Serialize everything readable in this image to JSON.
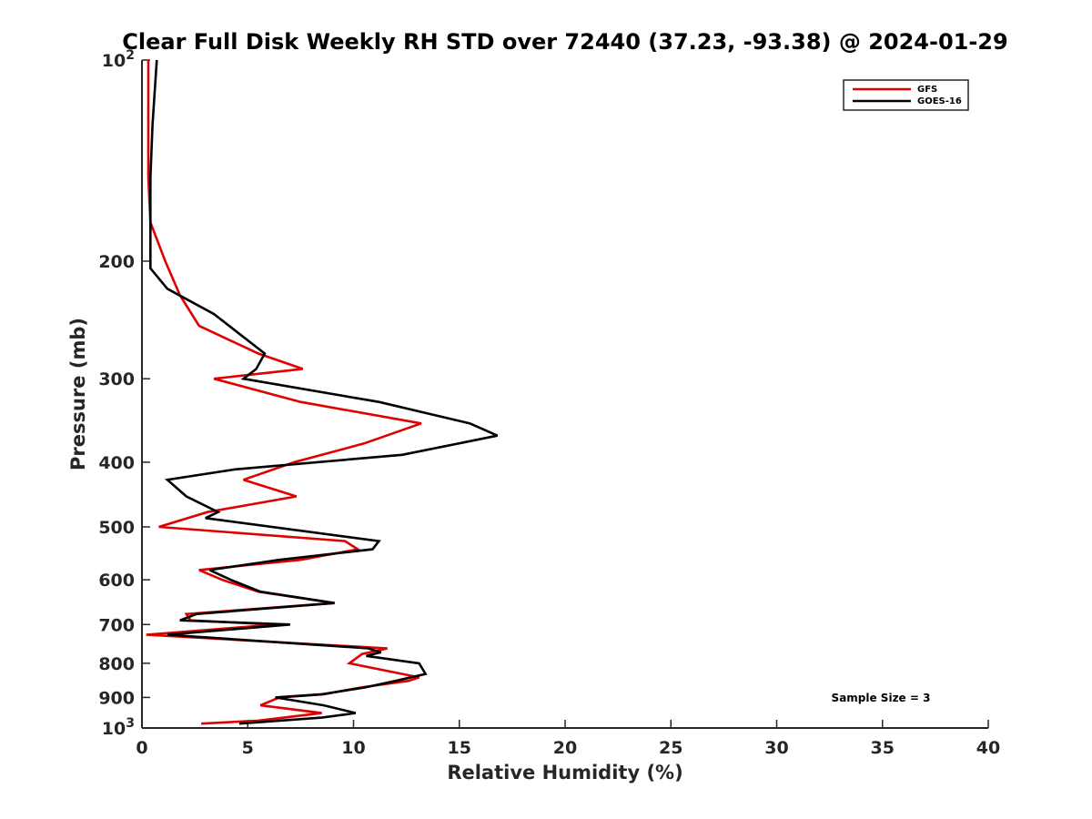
{
  "chart_data": {
    "type": "line",
    "title": "Clear Full Disk Weekly RH STD over 72440 (37.23, -93.38) @ 2024-01-29",
    "xlabel": "Relative Humidity (%)",
    "ylabel": "Pressure (mb)",
    "xlim": [
      0,
      40
    ],
    "ylim": [
      100,
      1000
    ],
    "yscale": "log",
    "y_reversed": true,
    "grid": false,
    "legend_position": "top-right",
    "x_ticks": [
      0,
      5,
      10,
      15,
      20,
      25,
      30,
      35,
      40
    ],
    "y_ticks": [
      {
        "value": 100,
        "base": "10",
        "exp": "2"
      },
      {
        "value": 200,
        "label": "200"
      },
      {
        "value": 300,
        "label": "300"
      },
      {
        "value": 400,
        "label": "400"
      },
      {
        "value": 500,
        "label": "500"
      },
      {
        "value": 600,
        "label": "600"
      },
      {
        "value": 700,
        "label": "700"
      },
      {
        "value": 800,
        "label": "800"
      },
      {
        "value": 900,
        "label": "900"
      },
      {
        "value": 1000,
        "base": "10",
        "exp": "3"
      }
    ],
    "annotation": "Sample Size = 3",
    "series": [
      {
        "name": "GFS",
        "color": "#e00000",
        "points": [
          [
            0.3,
            100
          ],
          [
            0.3,
            125
          ],
          [
            0.3,
            150
          ],
          [
            0.4,
            175
          ],
          [
            1.1,
            200
          ],
          [
            1.8,
            225
          ],
          [
            2.7,
            250
          ],
          [
            5.5,
            275
          ],
          [
            7.6,
            290
          ],
          [
            3.4,
            300
          ],
          [
            7.5,
            325
          ],
          [
            13.2,
            350
          ],
          [
            10.5,
            375
          ],
          [
            7.2,
            400
          ],
          [
            4.8,
            425
          ],
          [
            7.3,
            450
          ],
          [
            3.1,
            475
          ],
          [
            0.8,
            500
          ],
          [
            9.6,
            525
          ],
          [
            10.2,
            540
          ],
          [
            7.5,
            560
          ],
          [
            2.7,
            580
          ],
          [
            3.8,
            600
          ],
          [
            5.5,
            625
          ],
          [
            9.1,
            650
          ],
          [
            2.1,
            675
          ],
          [
            2.3,
            690
          ],
          [
            6.3,
            700
          ],
          [
            0.2,
            725
          ],
          [
            11.6,
            760
          ],
          [
            10.4,
            775
          ],
          [
            9.8,
            800
          ],
          [
            13.1,
            840
          ],
          [
            12.6,
            850
          ],
          [
            10.3,
            870
          ],
          [
            8.6,
            890
          ],
          [
            6.5,
            900
          ],
          [
            5.6,
            925
          ],
          [
            8.5,
            950
          ],
          [
            5.5,
            975
          ],
          [
            2.8,
            985
          ]
        ]
      },
      {
        "name": "GOES-16",
        "color": "#000000",
        "points": [
          [
            0.7,
            100
          ],
          [
            0.5,
            125
          ],
          [
            0.4,
            150
          ],
          [
            0.4,
            175
          ],
          [
            0.4,
            200
          ],
          [
            0.4,
            205
          ],
          [
            1.2,
            220
          ],
          [
            3.4,
            240
          ],
          [
            5.8,
            275
          ],
          [
            5.4,
            290
          ],
          [
            4.8,
            300
          ],
          [
            11.2,
            325
          ],
          [
            15.5,
            350
          ],
          [
            16.8,
            365
          ],
          [
            12.3,
            390
          ],
          [
            4.4,
            410
          ],
          [
            1.2,
            425
          ],
          [
            2.1,
            450
          ],
          [
            3.6,
            475
          ],
          [
            3.0,
            485
          ],
          [
            11.2,
            525
          ],
          [
            10.9,
            540
          ],
          [
            6.5,
            560
          ],
          [
            3.2,
            580
          ],
          [
            4.2,
            600
          ],
          [
            5.6,
            625
          ],
          [
            9.1,
            650
          ],
          [
            2.6,
            675
          ],
          [
            1.8,
            690
          ],
          [
            7.0,
            700
          ],
          [
            1.2,
            725
          ],
          [
            10.7,
            760
          ],
          [
            11.3,
            770
          ],
          [
            10.6,
            780
          ],
          [
            13.1,
            800
          ],
          [
            13.4,
            830
          ],
          [
            12.0,
            850
          ],
          [
            10.5,
            870
          ],
          [
            8.5,
            890
          ],
          [
            6.3,
            900
          ],
          [
            8.6,
            925
          ],
          [
            10.1,
            950
          ],
          [
            8.5,
            965
          ],
          [
            4.6,
            985
          ]
        ]
      }
    ]
  }
}
